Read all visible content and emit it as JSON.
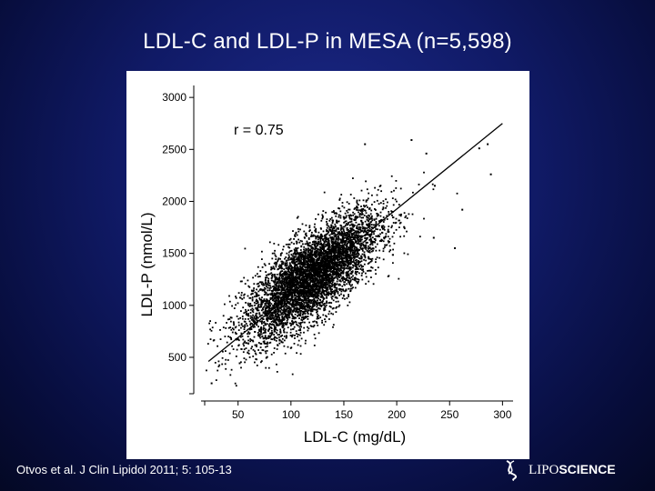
{
  "slide": {
    "title": "LDL-C and LDL-P in MESA (n=5,598)",
    "citation": "Otvos et al. J Clin Lipidol 2011; 5: 105-13",
    "brand": {
      "prefix": "LIPO",
      "suffix": "SCIENCE",
      "logo_icon": "helix-icon"
    }
  },
  "colors": {
    "background": "#0b1450",
    "title": "#ffffff",
    "points": "#000000",
    "panel": "#ffffff"
  },
  "chart_data": {
    "type": "scatter",
    "title": "",
    "xlabel": "LDL-C (mg/dL)",
    "ylabel": "LDL-P (nmol/L)",
    "xlim": [
      15,
      310
    ],
    "ylim": [
      150,
      3080
    ],
    "xticks": [
      50,
      100,
      150,
      200,
      250,
      300
    ],
    "yticks": [
      500,
      1000,
      1500,
      2000,
      2500,
      3000
    ],
    "annotation": "r = 0.75",
    "n": 5598,
    "grid": false,
    "fit_line": {
      "x": [
        22,
        300
      ],
      "y": [
        460,
        2750
      ]
    },
    "cloud": {
      "center_x": 120,
      "center_y": 1280,
      "sd_x": 32,
      "sd_y": 305,
      "correlation": 0.75
    },
    "outliers": [
      {
        "x": 278,
        "y": 2510
      },
      {
        "x": 286,
        "y": 2550
      },
      {
        "x": 289,
        "y": 2260
      },
      {
        "x": 262,
        "y": 1920
      },
      {
        "x": 236,
        "y": 2150
      },
      {
        "x": 255,
        "y": 1550
      },
      {
        "x": 235,
        "y": 1650
      },
      {
        "x": 228,
        "y": 2460
      },
      {
        "x": 25,
        "y": 250
      },
      {
        "x": 170,
        "y": 2550
      },
      {
        "x": 214,
        "y": 2590
      }
    ]
  }
}
